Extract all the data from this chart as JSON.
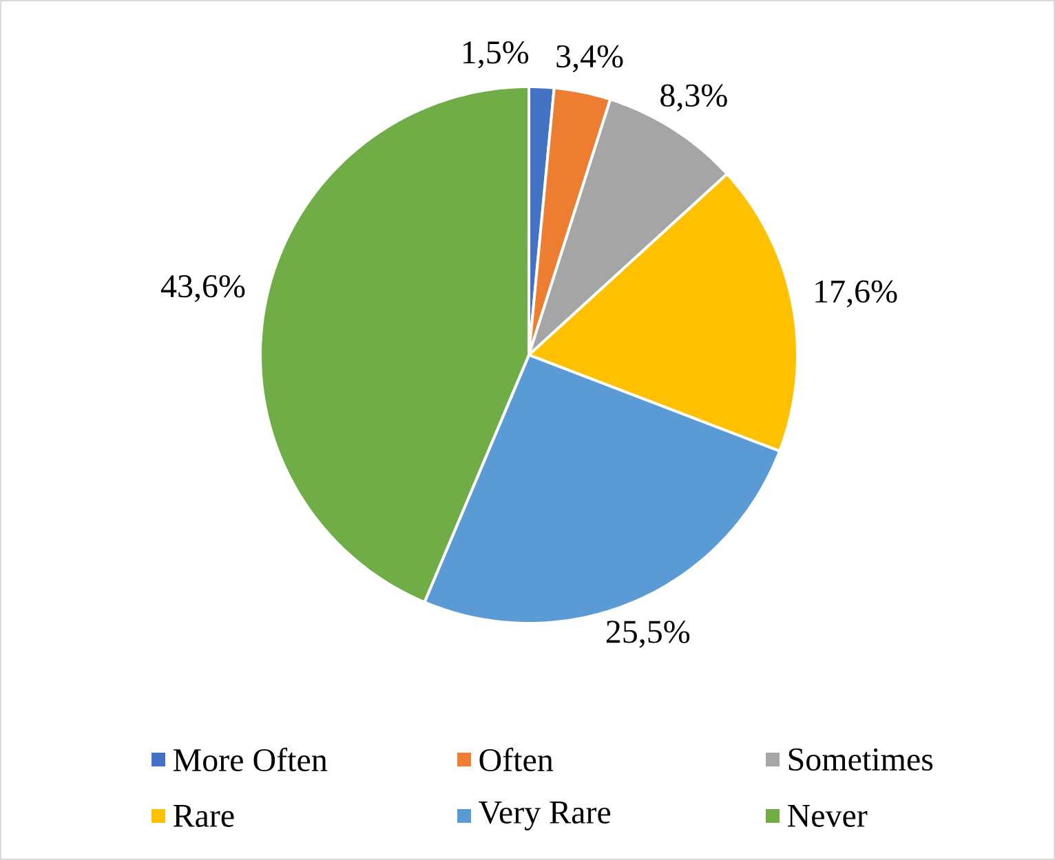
{
  "chart_data": {
    "type": "pie",
    "categories": [
      "More Often",
      "Often",
      "Sometimes",
      "Rare",
      "Very Rare",
      "Never"
    ],
    "values": [
      1.5,
      3.4,
      8.3,
      17.6,
      25.5,
      43.6
    ],
    "colors": [
      "#4472c4",
      "#ed7d31",
      "#a5a5a5",
      "#ffc000",
      "#5b9bd5",
      "#70ad47"
    ],
    "value_labels": [
      "1,5%",
      "3,4%",
      "8,3%",
      "17,6%",
      "25,5%",
      "43,6%"
    ],
    "legend": "bottom"
  }
}
